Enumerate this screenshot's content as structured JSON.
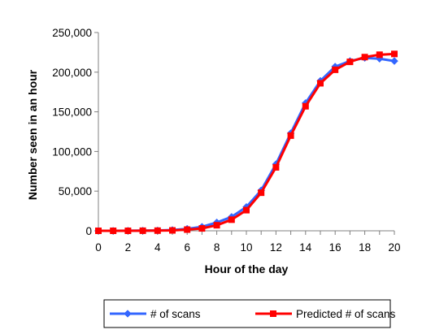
{
  "chart_data": {
    "type": "line",
    "title": "",
    "xlabel": "Hour of the day",
    "ylabel": "Number seen in an hour",
    "xlim": [
      0,
      20
    ],
    "ylim": [
      0,
      250000
    ],
    "x_ticks": [
      "0",
      "2",
      "4",
      "6",
      "8",
      "10",
      "12",
      "14",
      "16",
      "18",
      "20"
    ],
    "y_ticks": [
      "0",
      "50,000",
      "100,000",
      "150,000",
      "200,000",
      "250,000"
    ],
    "grid": false,
    "legend_position": "bottom",
    "x": [
      0,
      1,
      2,
      3,
      4,
      5,
      6,
      7,
      8,
      9,
      10,
      11,
      12,
      13,
      14,
      15,
      16,
      17,
      18,
      19,
      20
    ],
    "series": [
      {
        "name": "# of scans",
        "color": "#3366ff",
        "marker": "diamond",
        "values": [
          0,
          0,
          100,
          200,
          400,
          1000,
          2500,
          5000,
          10500,
          17500,
          30000,
          51000,
          84000,
          123000,
          161000,
          189000,
          207000,
          214000,
          218000,
          217000,
          214000
        ]
      },
      {
        "name": "Predicted # of scans",
        "color": "#ff0000",
        "marker": "square",
        "values": [
          0,
          0,
          0,
          100,
          200,
          500,
          1500,
          3000,
          7000,
          14000,
          26000,
          48000,
          80000,
          120000,
          157000,
          186000,
          203000,
          213000,
          219000,
          222000,
          223000
        ]
      }
    ]
  }
}
